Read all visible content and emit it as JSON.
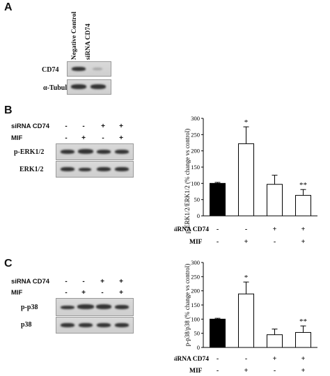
{
  "panelA": {
    "letter": "A",
    "columns": [
      "Negative Control",
      "siRNA CD74"
    ],
    "rows": [
      "CD74",
      "α-Tubulin"
    ]
  },
  "panelB": {
    "letter": "B",
    "treatment_labels": [
      "siRNA CD74",
      "MIF"
    ],
    "siRNA_signs": [
      "-",
      "-",
      "+",
      "+"
    ],
    "MIF_signs": [
      "-",
      "+",
      "-",
      "+"
    ],
    "blot_rows": [
      "p-ERK1/2",
      "ERK1/2"
    ],
    "chart_xrow_labels": [
      "siRNA CD74",
      "MIF"
    ]
  },
  "panelC": {
    "letter": "C",
    "treatment_labels": [
      "siRNA CD74",
      "MIF"
    ],
    "siRNA_signs": [
      "-",
      "-",
      "+",
      "+"
    ],
    "MIF_signs": [
      "-",
      "+",
      "-",
      "+"
    ],
    "blot_rows": [
      "p-p38",
      "p38"
    ],
    "chart_xrow_labels": [
      "siRNA CD74",
      "MIF"
    ]
  },
  "chart_data": [
    {
      "type": "bar",
      "ylabel": "p-ERK1/2/ERK1/2 (% change vs control)",
      "ylim": [
        0,
        300
      ],
      "yticks": [
        0,
        50,
        100,
        150,
        200,
        250,
        300
      ],
      "values": [
        100,
        222,
        97,
        63
      ],
      "errors": [
        3,
        52,
        28,
        18
      ],
      "significance": [
        "",
        "*",
        "",
        "**"
      ],
      "bar_colors": [
        "#000000",
        "#ffffff",
        "#ffffff",
        "#ffffff"
      ]
    },
    {
      "type": "bar",
      "ylabel": "p-p38/p38 (% change vs control)",
      "ylim": [
        0,
        300
      ],
      "yticks": [
        0,
        50,
        100,
        150,
        200,
        250,
        300
      ],
      "values": [
        100,
        189,
        45,
        53
      ],
      "errors": [
        3,
        42,
        20,
        23
      ],
      "significance": [
        "",
        "*",
        "",
        "**"
      ],
      "bar_colors": [
        "#000000",
        "#ffffff",
        "#ffffff",
        "#ffffff"
      ]
    }
  ]
}
